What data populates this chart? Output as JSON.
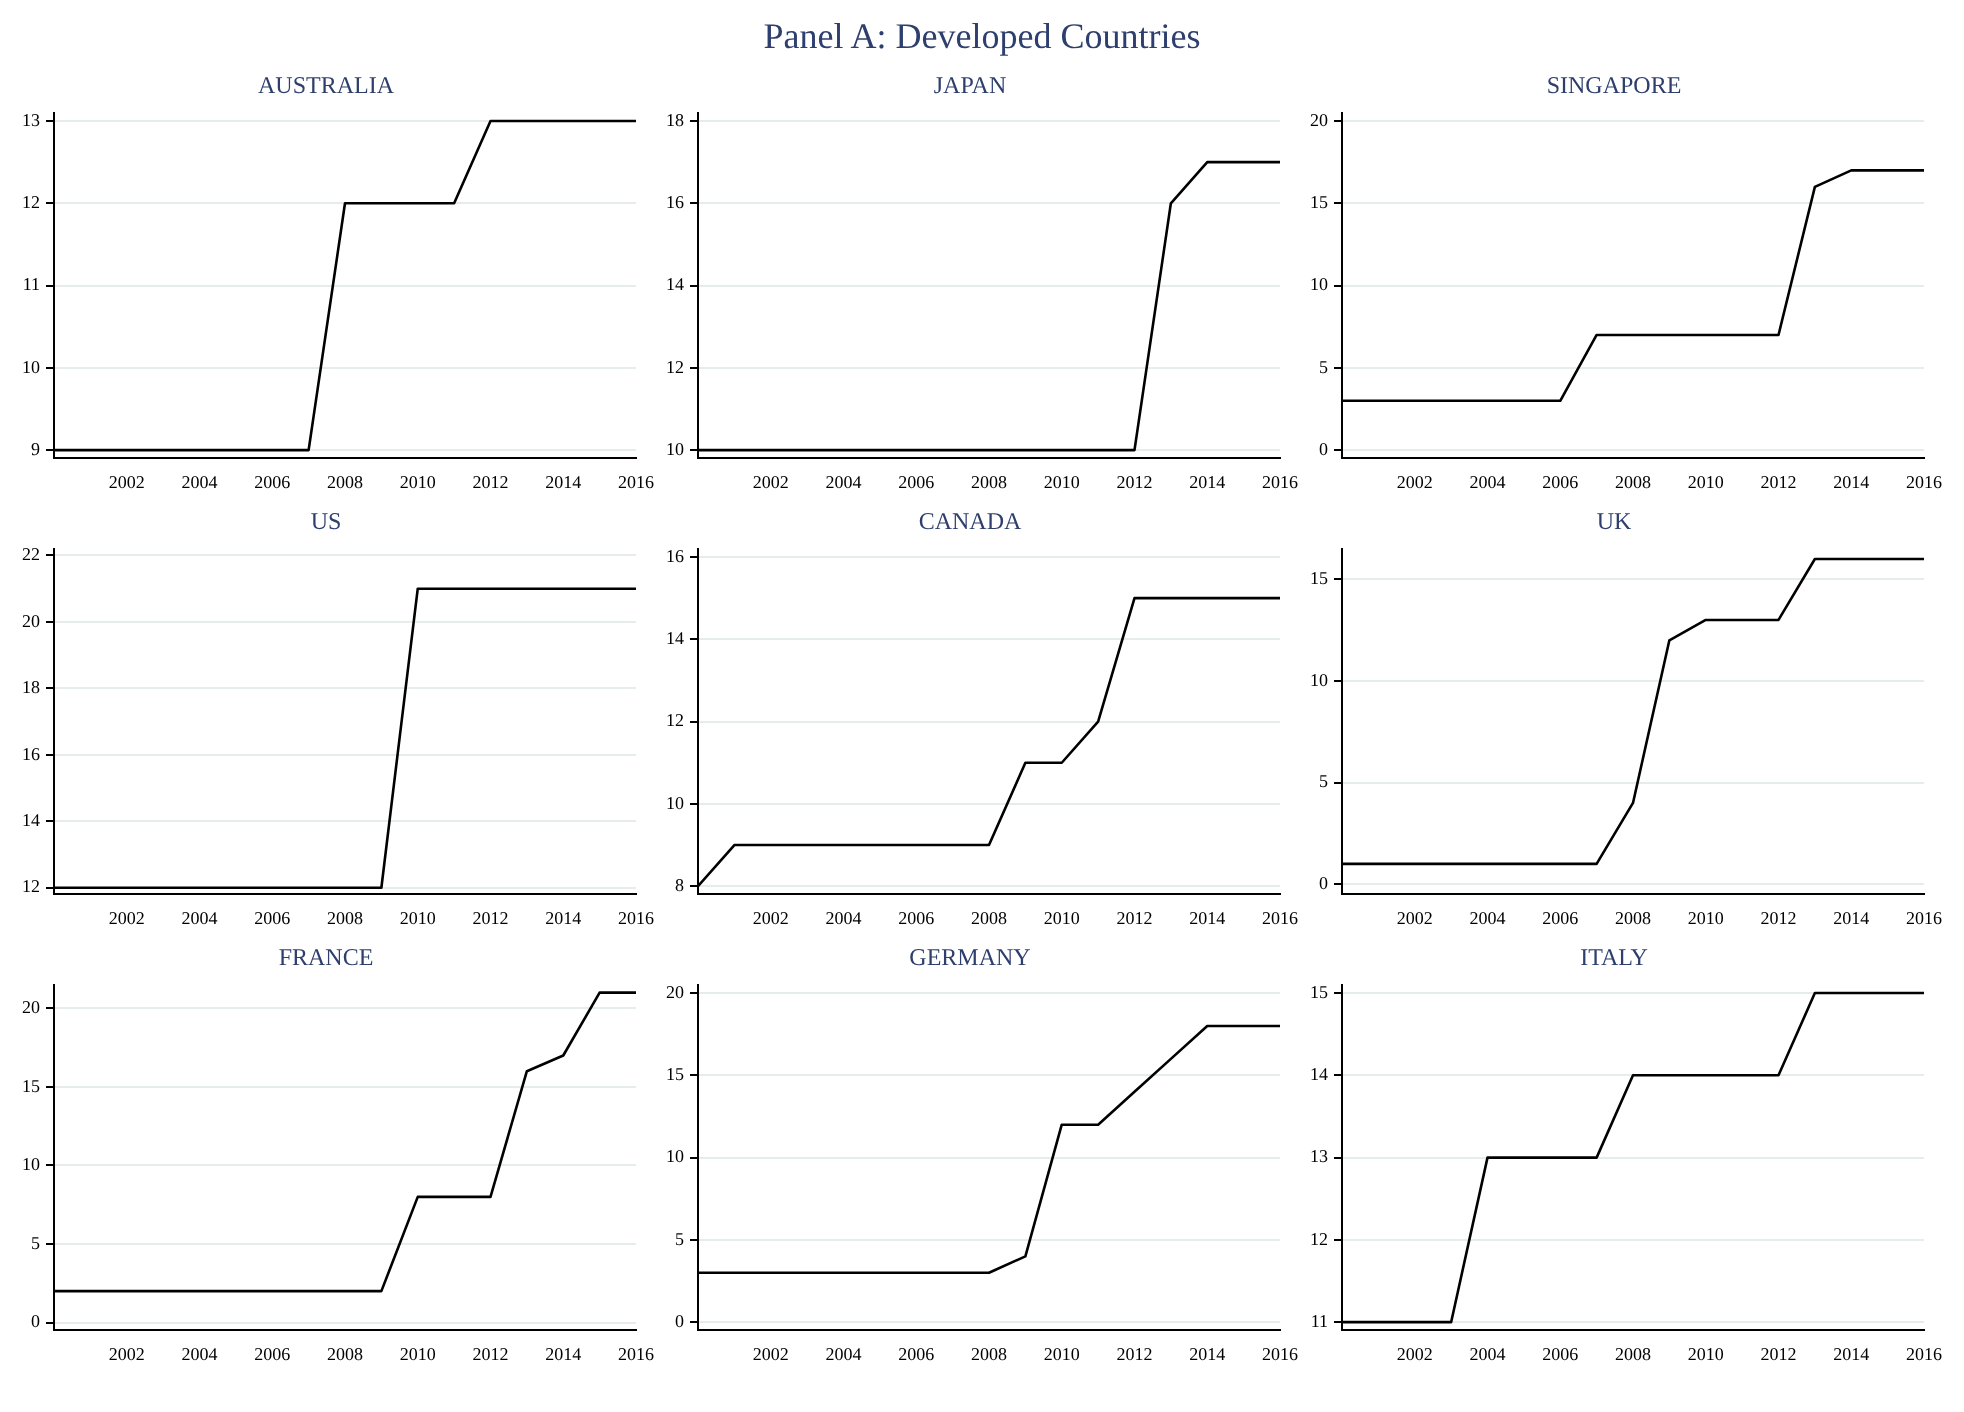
{
  "chart_data": [
    {
      "type": "line",
      "title": "AUSTRALIA",
      "annotations": [
        "Panel A: Developed Countries"
      ],
      "x": [
        2000,
        2001,
        2002,
        2003,
        2004,
        2005,
        2006,
        2007,
        2008,
        2009,
        2010,
        2011,
        2012,
        2013,
        2014,
        2015,
        2016
      ],
      "series": [
        {
          "color": "#000000",
          "values": [
            9,
            9,
            9,
            9,
            9,
            9,
            9,
            9,
            12,
            12,
            12,
            12,
            13,
            13,
            13,
            13,
            13
          ]
        }
      ],
      "xlim": [
        2000,
        2016
      ],
      "xticks": [
        2002,
        2004,
        2006,
        2008,
        2010,
        2012,
        2014,
        2016
      ],
      "ylim": [
        8.9,
        13.1
      ],
      "yticks": [
        9,
        10,
        11,
        12,
        13
      ],
      "grid": "y",
      "marker": "none",
      "line_style": "solid",
      "legend": false
    },
    {
      "type": "line",
      "title": "JAPAN",
      "x": [
        2000,
        2001,
        2002,
        2003,
        2004,
        2005,
        2006,
        2007,
        2008,
        2009,
        2010,
        2011,
        2012,
        2013,
        2014,
        2015,
        2016
      ],
      "series": [
        {
          "color": "#000000",
          "values": [
            10,
            10,
            10,
            10,
            10,
            10,
            10,
            10,
            10,
            10,
            10,
            10,
            10,
            16,
            17,
            17,
            17
          ]
        }
      ],
      "xlim": [
        2000,
        2016
      ],
      "xticks": [
        2002,
        2004,
        2006,
        2008,
        2010,
        2012,
        2014,
        2016
      ],
      "ylim": [
        9.8,
        18.2
      ],
      "yticks": [
        10,
        12,
        14,
        16,
        18
      ],
      "grid": "y",
      "marker": "none",
      "line_style": "solid",
      "legend": false
    },
    {
      "type": "line",
      "title": "SINGAPORE",
      "x": [
        2000,
        2001,
        2002,
        2003,
        2004,
        2005,
        2006,
        2007,
        2008,
        2009,
        2010,
        2011,
        2012,
        2013,
        2014,
        2015,
        2016
      ],
      "series": [
        {
          "color": "#000000",
          "values": [
            3,
            3,
            3,
            3,
            3,
            3,
            3,
            7,
            7,
            7,
            7,
            7,
            7,
            16,
            17,
            17,
            17
          ]
        }
      ],
      "xlim": [
        2000,
        2016
      ],
      "xticks": [
        2002,
        2004,
        2006,
        2008,
        2010,
        2012,
        2014,
        2016
      ],
      "ylim": [
        -0.5,
        20.5
      ],
      "yticks": [
        0,
        5,
        10,
        15,
        20
      ],
      "grid": "y",
      "marker": "none",
      "line_style": "solid",
      "legend": false
    },
    {
      "type": "line",
      "title": "US",
      "x": [
        2000,
        2001,
        2002,
        2003,
        2004,
        2005,
        2006,
        2007,
        2008,
        2009,
        2010,
        2011,
        2012,
        2013,
        2014,
        2015,
        2016
      ],
      "series": [
        {
          "color": "#000000",
          "values": [
            12,
            12,
            12,
            12,
            12,
            12,
            12,
            12,
            12,
            12,
            21,
            21,
            21,
            21,
            21,
            21,
            21
          ]
        }
      ],
      "xlim": [
        2000,
        2016
      ],
      "xticks": [
        2002,
        2004,
        2006,
        2008,
        2010,
        2012,
        2014,
        2016
      ],
      "ylim": [
        11.8,
        22.2
      ],
      "yticks": [
        12,
        14,
        16,
        18,
        20,
        22
      ],
      "grid": "y",
      "marker": "none",
      "line_style": "solid",
      "legend": false
    },
    {
      "type": "line",
      "title": "CANADA",
      "x": [
        2000,
        2001,
        2002,
        2003,
        2004,
        2005,
        2006,
        2007,
        2008,
        2009,
        2010,
        2011,
        2012,
        2013,
        2014,
        2015,
        2016
      ],
      "series": [
        {
          "color": "#000000",
          "values": [
            8,
            9,
            9,
            9,
            9,
            9,
            9,
            9,
            9,
            11,
            11,
            12,
            15,
            15,
            15,
            15,
            15
          ]
        }
      ],
      "xlim": [
        2000,
        2016
      ],
      "xticks": [
        2002,
        2004,
        2006,
        2008,
        2010,
        2012,
        2014,
        2016
      ],
      "ylim": [
        7.8,
        16.2
      ],
      "yticks": [
        8,
        10,
        12,
        14,
        16
      ],
      "grid": "y",
      "marker": "none",
      "line_style": "solid",
      "legend": false
    },
    {
      "type": "line",
      "title": "UK",
      "x": [
        2000,
        2001,
        2002,
        2003,
        2004,
        2005,
        2006,
        2007,
        2008,
        2009,
        2010,
        2011,
        2012,
        2013,
        2014,
        2015,
        2016
      ],
      "series": [
        {
          "color": "#000000",
          "values": [
            1,
            1,
            1,
            1,
            1,
            1,
            1,
            1,
            4,
            12,
            13,
            13,
            13,
            16,
            16,
            16,
            16
          ]
        }
      ],
      "xlim": [
        2000,
        2016
      ],
      "xticks": [
        2002,
        2004,
        2006,
        2008,
        2010,
        2012,
        2014,
        2016
      ],
      "ylim": [
        -0.5,
        16.5
      ],
      "yticks": [
        0,
        5,
        10,
        15
      ],
      "grid": "y",
      "marker": "none",
      "line_style": "solid",
      "legend": false
    },
    {
      "type": "line",
      "title": "FRANCE",
      "x": [
        2000,
        2001,
        2002,
        2003,
        2004,
        2005,
        2006,
        2007,
        2008,
        2009,
        2010,
        2011,
        2012,
        2013,
        2014,
        2015,
        2016
      ],
      "series": [
        {
          "color": "#000000",
          "values": [
            2,
            2,
            2,
            2,
            2,
            2,
            2,
            2,
            2,
            2,
            8,
            8,
            8,
            16,
            17,
            21,
            21
          ]
        }
      ],
      "xlim": [
        2000,
        2016
      ],
      "xticks": [
        2002,
        2004,
        2006,
        2008,
        2010,
        2012,
        2014,
        2016
      ],
      "ylim": [
        -0.5,
        21.5
      ],
      "yticks": [
        0,
        5,
        10,
        15,
        20
      ],
      "grid": "y",
      "marker": "none",
      "line_style": "solid",
      "legend": false
    },
    {
      "type": "line",
      "title": "GERMANY",
      "x": [
        2000,
        2001,
        2002,
        2003,
        2004,
        2005,
        2006,
        2007,
        2008,
        2009,
        2010,
        2011,
        2012,
        2013,
        2014,
        2015,
        2016
      ],
      "series": [
        {
          "color": "#000000",
          "values": [
            3,
            3,
            3,
            3,
            3,
            3,
            3,
            3,
            3,
            4,
            12,
            12,
            14,
            16,
            18,
            18,
            18
          ]
        }
      ],
      "xlim": [
        2000,
        2016
      ],
      "xticks": [
        2002,
        2004,
        2006,
        2008,
        2010,
        2012,
        2014,
        2016
      ],
      "ylim": [
        -0.5,
        20.5
      ],
      "yticks": [
        0,
        5,
        10,
        15,
        20
      ],
      "grid": "y",
      "marker": "none",
      "line_style": "solid",
      "legend": false
    },
    {
      "type": "line",
      "title": "ITALY",
      "x": [
        2000,
        2001,
        2002,
        2003,
        2004,
        2005,
        2006,
        2007,
        2008,
        2009,
        2010,
        2011,
        2012,
        2013,
        2014,
        2015,
        2016
      ],
      "series": [
        {
          "color": "#000000",
          "values": [
            11,
            11,
            11,
            11,
            13,
            13,
            13,
            13,
            14,
            14,
            14,
            14,
            14,
            15,
            15,
            15,
            15
          ]
        }
      ],
      "xlim": [
        2000,
        2016
      ],
      "xticks": [
        2002,
        2004,
        2006,
        2008,
        2010,
        2012,
        2014,
        2016
      ],
      "ylim": [
        10.9,
        15.1
      ],
      "yticks": [
        11,
        12,
        13,
        14,
        15
      ],
      "grid": "y",
      "marker": "none",
      "line_style": "solid",
      "legend": false
    }
  ]
}
